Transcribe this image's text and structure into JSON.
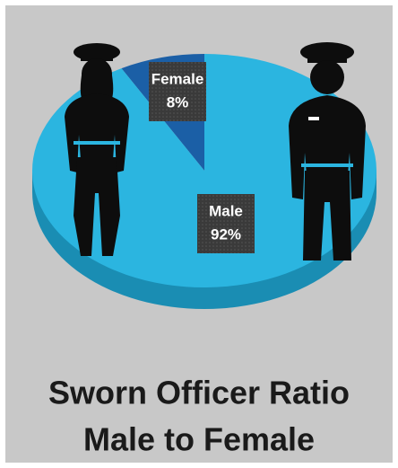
{
  "chart_data": {
    "type": "pie",
    "title": [
      "Sworn Officer Ratio",
      "Male to Female"
    ],
    "categories": [
      "Female",
      "Male"
    ],
    "values": [
      8,
      92
    ],
    "value_labels": [
      "8%",
      "92%"
    ],
    "colors": [
      "#1b5fa6",
      "#2bb5e0"
    ]
  }
}
